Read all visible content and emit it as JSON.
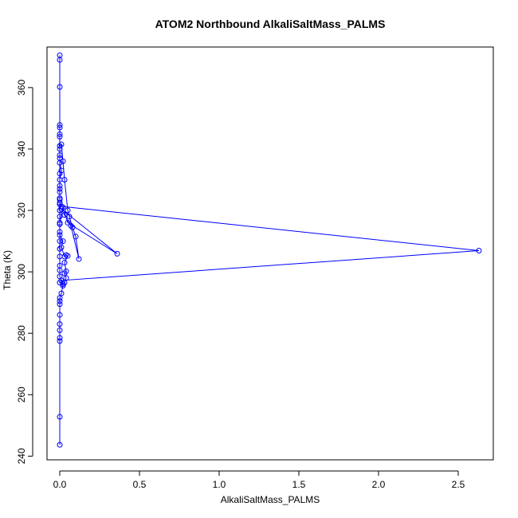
{
  "chart_data": {
    "type": "line",
    "title": "ATOM2 Northbound AlkaliSaltMass_PALMS",
    "xlabel": "AlkaliSaltMass_PALMS",
    "ylabel": "Theta (K)",
    "xlim": [
      -0.08,
      2.72
    ],
    "ylim": [
      238.8,
      373.2
    ],
    "x_ticks": [
      {
        "value": 0.0,
        "label": "0.0"
      },
      {
        "value": 0.5,
        "label": "0.5"
      },
      {
        "value": 1.0,
        "label": "1.0"
      },
      {
        "value": 1.5,
        "label": "1.5"
      },
      {
        "value": 2.0,
        "label": "2.0"
      },
      {
        "value": 2.5,
        "label": "2.5"
      }
    ],
    "y_ticks": [
      {
        "value": 240,
        "label": "240"
      },
      {
        "value": 260,
        "label": "260"
      },
      {
        "value": 280,
        "label": "280"
      },
      {
        "value": 300,
        "label": "300"
      },
      {
        "value": 320,
        "label": "320"
      },
      {
        "value": 340,
        "label": "340"
      },
      {
        "value": 360,
        "label": "360"
      }
    ],
    "series_color": "#0000ff",
    "marker": "open-circle",
    "grid": false,
    "legend": "none",
    "series": [
      {
        "points": [
          [
            0.0,
            243.7
          ],
          [
            0.0,
            252.8
          ],
          [
            0.0,
            277.5
          ],
          [
            0.0,
            278.5
          ],
          [
            0.0,
            281.0
          ],
          [
            0.0,
            283.0
          ],
          [
            0.0,
            286.0
          ],
          [
            0.0,
            289.5
          ],
          [
            0.0,
            290.5
          ],
          [
            0.0,
            291.5
          ],
          [
            0.01,
            293.0
          ],
          [
            0.02,
            295.5
          ],
          [
            0.0,
            296.5
          ],
          [
            0.01,
            297.2
          ],
          [
            2.63,
            306.9
          ],
          [
            0.01,
            321.3
          ],
          [
            0.0,
            322.5
          ],
          [
            0.0,
            324.0
          ],
          [
            0.0,
            326.0
          ],
          [
            0.0,
            328.0
          ],
          [
            0.0,
            330.0
          ],
          [
            0.01,
            333.0
          ],
          [
            0.0,
            335.5
          ],
          [
            0.0,
            338.0
          ],
          [
            0.0,
            340.0
          ],
          [
            0.0,
            341.0
          ],
          [
            0.01,
            341.5
          ],
          [
            0.02,
            336.0
          ],
          [
            0.03,
            330.0
          ],
          [
            0.05,
            320.0
          ],
          [
            0.06,
            318.0
          ],
          [
            0.08,
            314.5
          ],
          [
            0.1,
            311.5
          ],
          [
            0.12,
            304.2
          ],
          [
            0.07,
            315.0
          ],
          [
            0.03,
            318.5
          ],
          [
            0.01,
            320.5
          ],
          [
            0.36,
            305.9
          ],
          [
            0.05,
            316.0
          ],
          [
            0.02,
            321.0
          ],
          [
            0.0,
            316.0
          ],
          [
            0.0,
            312.0
          ],
          [
            0.02,
            310.0
          ],
          [
            0.01,
            308.0
          ],
          [
            0.03,
            305.0
          ],
          [
            0.04,
            305.5
          ],
          [
            0.05,
            305.2
          ],
          [
            0.03,
            303.0
          ],
          [
            0.04,
            300.2
          ],
          [
            0.03,
            299.5
          ],
          [
            0.04,
            298.0
          ],
          [
            0.03,
            296.5
          ],
          [
            0.02,
            296.0
          ],
          [
            0.0,
            298.5
          ],
          [
            0.0,
            300.5
          ],
          [
            0.0,
            302.0
          ],
          [
            0.0,
            305.0
          ],
          [
            0.0,
            307.5
          ],
          [
            0.0,
            310.0
          ],
          [
            0.0,
            313.0
          ],
          [
            0.0,
            315.5
          ],
          [
            0.0,
            318.0
          ],
          [
            0.0,
            320.0
          ],
          [
            0.0,
            322.0
          ],
          [
            0.0,
            323.5
          ],
          [
            0.0,
            327.0
          ],
          [
            0.0,
            332.0
          ],
          [
            0.0,
            337.0
          ],
          [
            0.0,
            344.0
          ],
          [
            0.0,
            344.8
          ],
          [
            0.0,
            347.0
          ],
          [
            0.0,
            347.8
          ],
          [
            0.0,
            360.2
          ],
          [
            0.0,
            369.0
          ],
          [
            0.0,
            370.5
          ]
        ]
      }
    ]
  }
}
